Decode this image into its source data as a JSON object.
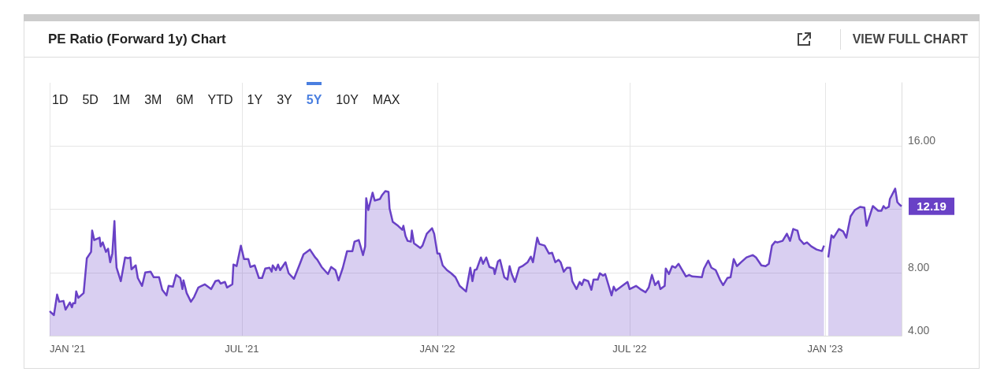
{
  "chart_data": {
    "type": "area",
    "title": "PE Ratio (Forward 1y) Chart",
    "marker": "none",
    "grid": true,
    "xlim": [
      "2021-01-01",
      "2023-03-14"
    ],
    "xticks": [
      {
        "value": "2021-01-01",
        "label": "JAN '21"
      },
      {
        "value": "2021-07-01",
        "label": "JUL '21"
      },
      {
        "value": "2022-01-01",
        "label": "JAN '22"
      },
      {
        "value": "2022-07-01",
        "label": "JUL '22"
      },
      {
        "value": "2023-01-01",
        "label": "JAN '23"
      }
    ],
    "ylim": [
      4,
      20
    ],
    "yticks": [
      {
        "value": 4,
        "label": "4.00"
      },
      {
        "value": 8,
        "label": "8.00"
      },
      {
        "value": 12,
        "label": null
      },
      {
        "value": 16,
        "label": "16.00"
      }
    ],
    "annotations": [
      "1D",
      "5D",
      "1M",
      "3M",
      "6M",
      "YTD",
      "1Y",
      "3Y",
      "5Y",
      "10Y",
      "MAX",
      "VIEW FULL CHART",
      {
        "text": "12.19",
        "x": "2023-03-14",
        "y": 12.19
      }
    ],
    "series": [
      {
        "color": "#6941c6",
        "x": [
          "2021-01-01",
          "2021-01-05",
          "2021-01-08",
          "2021-01-10",
          "2021-01-14",
          "2021-01-16",
          "2021-01-20",
          "2021-01-22",
          "2021-01-23",
          "2021-01-25",
          "2021-01-26",
          "2021-01-28",
          "2021-02-02",
          "2021-02-05",
          "2021-02-09",
          "2021-02-10",
          "2021-02-12",
          "2021-02-17",
          "2021-02-18",
          "2021-02-20",
          "2021-02-23",
          "2021-02-25",
          "2021-02-27",
          "2021-03-01",
          "2021-03-03",
          "2021-03-04",
          "2021-03-05",
          "2021-03-09",
          "2021-03-13",
          "2021-03-16",
          "2021-03-18",
          "2021-03-19",
          "2021-03-23",
          "2021-03-25",
          "2021-03-29",
          "2021-04-01",
          "2021-04-06",
          "2021-04-09",
          "2021-04-14",
          "2021-04-17",
          "2021-04-21",
          "2021-04-23",
          "2021-04-27",
          "2021-04-30",
          "2021-05-04",
          "2021-05-06",
          "2021-05-07",
          "2021-05-10",
          "2021-05-14",
          "2021-05-17",
          "2021-05-21",
          "2021-05-27",
          "2021-06-02",
          "2021-06-06",
          "2021-06-09",
          "2021-06-11",
          "2021-06-15",
          "2021-06-17",
          "2021-06-22",
          "2021-06-23",
          "2021-06-26",
          "2021-06-30",
          "2021-07-03",
          "2021-07-07",
          "2021-07-09",
          "2021-07-13",
          "2021-07-17",
          "2021-07-20",
          "2021-07-23",
          "2021-07-27",
          "2021-07-29",
          "2021-07-30",
          "2021-08-02",
          "2021-08-04",
          "2021-08-06",
          "2021-08-11",
          "2021-08-14",
          "2021-08-19",
          "2021-08-24",
          "2021-08-28",
          "2021-09-03",
          "2021-09-08",
          "2021-09-10",
          "2021-09-14",
          "2021-09-20",
          "2021-09-23",
          "2021-09-27",
          "2021-09-30",
          "2021-10-04",
          "2021-10-08",
          "2021-10-13",
          "2021-10-15",
          "2021-10-19",
          "2021-10-23",
          "2021-10-25",
          "2021-10-26",
          "2021-10-28",
          "2021-11-01",
          "2021-11-03",
          "2021-11-08",
          "2021-11-10",
          "2021-11-13",
          "2021-11-16",
          "2021-11-17",
          "2021-11-20",
          "2021-11-25",
          "2021-11-29",
          "2021-11-30",
          "2021-12-02",
          "2021-12-04",
          "2021-12-07",
          "2021-12-08",
          "2021-12-10",
          "2021-12-16",
          "2021-12-18",
          "2021-12-22",
          "2021-12-27",
          "2021-12-29",
          "2022-01-01",
          "2022-01-03",
          "2022-01-06",
          "2022-01-10",
          "2022-01-14",
          "2022-01-18",
          "2022-01-22",
          "2022-01-28",
          "2022-02-01",
          "2022-02-03",
          "2022-02-05",
          "2022-02-07",
          "2022-02-11",
          "2022-02-13",
          "2022-02-16",
          "2022-02-19",
          "2022-02-23",
          "2022-02-24",
          "2022-02-27",
          "2022-03-01",
          "2022-03-05",
          "2022-03-08",
          "2022-03-10",
          "2022-03-12",
          "2022-03-15",
          "2022-03-19",
          "2022-03-22",
          "2022-03-27",
          "2022-03-30",
          "2022-04-01",
          "2022-04-05",
          "2022-04-07",
          "2022-04-12",
          "2022-04-16",
          "2022-04-19",
          "2022-04-22",
          "2022-04-25",
          "2022-04-27",
          "2022-04-30",
          "2022-05-03",
          "2022-05-06",
          "2022-05-08",
          "2022-05-12",
          "2022-05-15",
          "2022-05-17",
          "2022-05-19",
          "2022-05-23",
          "2022-05-26",
          "2022-05-28",
          "2022-06-01",
          "2022-06-03",
          "2022-06-06",
          "2022-06-08",
          "2022-06-14",
          "2022-06-16",
          "2022-06-18",
          "2022-06-23",
          "2022-06-29",
          "2022-07-01",
          "2022-07-07",
          "2022-07-11",
          "2022-07-16",
          "2022-07-19",
          "2022-07-22",
          "2022-07-25",
          "2022-07-28",
          "2022-07-30",
          "2022-08-03",
          "2022-08-04",
          "2022-08-07",
          "2022-08-10",
          "2022-08-13",
          "2022-08-16",
          "2022-08-19",
          "2022-08-23",
          "2022-08-26",
          "2022-08-29",
          "2022-09-07",
          "2022-09-09",
          "2022-09-13",
          "2022-09-16",
          "2022-09-20",
          "2022-09-24",
          "2022-09-27",
          "2022-10-01",
          "2022-10-04",
          "2022-10-07",
          "2022-10-10",
          "2022-10-14",
          "2022-10-19",
          "2022-10-25",
          "2022-10-28",
          "2022-11-02",
          "2022-11-06",
          "2022-11-09",
          "2022-11-12",
          "2022-11-15",
          "2022-11-17",
          "2022-11-22",
          "2022-11-26",
          "2022-11-29",
          "2022-12-02",
          "2022-12-06",
          "2022-12-08",
          "2022-12-12",
          "2022-12-15",
          "2022-12-19",
          "2022-12-24",
          "2022-12-29",
          "2022-12-31",
          "2023-01-01",
          "2023-01-04",
          "2023-01-07",
          "2023-01-09",
          "2023-01-14",
          "2023-01-18",
          "2023-01-21",
          "2023-01-25",
          "2023-01-29",
          "2023-02-03",
          "2023-02-07",
          "2023-02-09",
          "2023-02-15",
          "2023-02-20",
          "2023-02-23",
          "2023-02-25",
          "2023-02-27",
          "2023-03-02",
          "2023-03-03",
          "2023-03-08",
          "2023-03-10",
          "2023-03-12",
          "2023-03-14"
        ],
        "values": [
          5.55,
          5.3,
          6.6,
          6.15,
          6.2,
          5.65,
          6.1,
          5.8,
          6.05,
          6.05,
          6.8,
          6.4,
          6.7,
          8.9,
          9.3,
          10.65,
          10.05,
          10.2,
          9.65,
          9.9,
          9.3,
          9.5,
          8.65,
          9.2,
          11.25,
          9.45,
          8.3,
          7.45,
          8.95,
          8.9,
          8.95,
          8.2,
          8.45,
          7.65,
          7.15,
          8.0,
          8.05,
          7.7,
          7.7,
          6.9,
          6.55,
          7.15,
          7.1,
          7.85,
          7.65,
          6.95,
          7.5,
          6.7,
          6.15,
          6.45,
          7.05,
          7.25,
          6.95,
          7.45,
          7.5,
          7.3,
          7.4,
          7.05,
          7.25,
          8.5,
          8.4,
          9.7,
          8.85,
          8.85,
          8.35,
          8.45,
          7.65,
          7.65,
          8.25,
          8.3,
          8.05,
          8.45,
          8.15,
          8.5,
          8.15,
          8.65,
          7.95,
          7.6,
          8.45,
          9.15,
          9.45,
          8.95,
          8.8,
          8.35,
          7.9,
          8.35,
          8.15,
          7.5,
          8.3,
          9.35,
          9.35,
          9.95,
          10.05,
          9.1,
          9.65,
          12.7,
          11.95,
          13.05,
          12.55,
          12.65,
          12.9,
          13.15,
          13.1,
          12.05,
          11.2,
          10.95,
          10.7,
          10.95,
          10.3,
          10.0,
          9.95,
          10.65,
          9.85,
          9.55,
          9.7,
          10.45,
          10.8,
          10.45,
          9.2,
          9.2,
          8.45,
          8.15,
          7.95,
          7.7,
          7.15,
          6.8,
          8.3,
          7.45,
          8.15,
          8.2,
          8.95,
          8.55,
          8.95,
          8.35,
          8.25,
          7.9,
          8.7,
          8.8,
          7.7,
          7.55,
          8.4,
          7.9,
          7.4,
          8.3,
          8.4,
          8.65,
          9.0,
          8.65,
          10.2,
          9.8,
          9.7,
          9.2,
          9.25,
          8.65,
          8.8,
          8.65,
          8.05,
          8.3,
          8.3,
          7.45,
          6.95,
          7.4,
          7.2,
          7.55,
          7.45,
          6.9,
          7.55,
          7.55,
          7.95,
          7.8,
          7.9,
          6.55,
          7.1,
          6.85,
          7.1,
          7.4,
          6.95,
          7.15,
          6.95,
          6.75,
          7.05,
          7.85,
          7.2,
          7.45,
          6.95,
          7.15,
          8.25,
          7.9,
          8.4,
          8.3,
          8.55,
          8.2,
          7.75,
          7.85,
          7.75,
          7.7,
          8.25,
          8.75,
          8.3,
          8.15,
          7.55,
          7.2,
          7.65,
          7.7,
          8.85,
          8.4,
          8.65,
          8.95,
          9.1,
          8.95,
          8.45,
          8.4,
          8.55,
          9.7,
          9.95,
          9.9,
          10.0,
          10.45,
          10.0,
          10.75,
          10.65,
          10.1,
          9.8,
          9.9,
          9.65,
          9.45,
          9.35,
          9.7,
          null,
          8.95,
          10.35,
          10.2,
          10.75,
          10.6,
          10.2,
          11.55,
          11.95,
          12.15,
          12.1,
          10.95,
          12.2,
          11.9,
          11.9,
          12.2,
          12.05,
          12.15,
          12.65,
          13.3,
          12.45,
          12.3,
          12.19
        ]
      }
    ]
  }
}
